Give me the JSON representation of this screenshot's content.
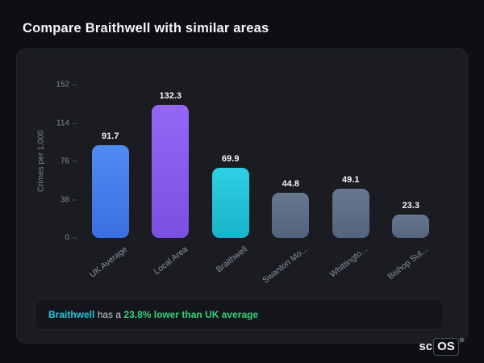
{
  "page": {
    "title": "Compare Braithwell with similar areas"
  },
  "chart_data": {
    "type": "bar",
    "categories": [
      "UK Average",
      "Local Area",
      "Braithwell",
      "Swanton Mo...",
      "Whittingto...",
      "Bishop Sut..."
    ],
    "values": [
      91.7,
      132.3,
      69.9,
      44.8,
      49.1,
      23.3
    ],
    "bar_colors": [
      "#3a6fe2",
      "#7c4fe0",
      "#18b3ca",
      "#54647c",
      "#54647c",
      "#54647c"
    ],
    "bar_colors_top": [
      "#4f8cf2",
      "#9468f5",
      "#2fd0e4",
      "#66778e",
      "#66778e",
      "#66778e"
    ],
    "title": "",
    "xlabel": "",
    "ylabel": "Crimes per 1,000",
    "yticks": [
      0,
      38,
      76,
      114,
      152
    ],
    "ylim": [
      0,
      152
    ],
    "grid": false,
    "legend": false,
    "value_labels": true
  },
  "insight": {
    "highlight": "Braithwell",
    "text": " has a ",
    "stat": "23.8% lower than UK average"
  },
  "logo": {
    "prefix": "sc",
    "box": "OS",
    "registered": "®"
  },
  "colors": {
    "background": "#0d0f13",
    "card": "#1a1c22",
    "accent_cyan": "#25c8dc",
    "accent_green": "#35d07e"
  }
}
